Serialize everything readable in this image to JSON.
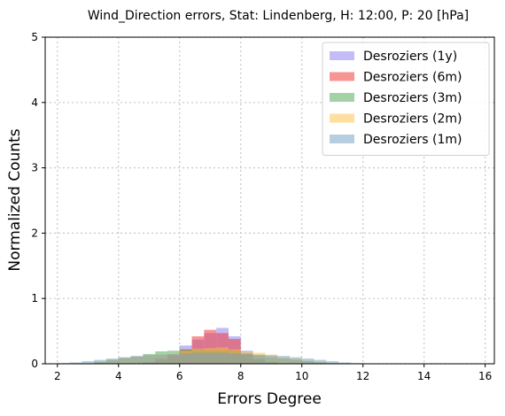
{
  "chart_data": {
    "type": "bar",
    "title": "Wind_Direction errors, Stat: Lindenberg, H: 12:00, P: 20 [hPa]",
    "xlabel": "Errors Degree",
    "ylabel": "Normalized Counts",
    "xlim": [
      1.6,
      16.3
    ],
    "ylim": [
      0,
      5
    ],
    "xticks": [
      2,
      4,
      6,
      8,
      10,
      12,
      14,
      16
    ],
    "yticks": [
      0,
      1,
      2,
      3,
      4,
      5
    ],
    "grid": true,
    "legend_position": "top-right",
    "bin_edges": [
      2.0,
      2.4,
      2.8,
      3.2,
      3.6,
      4.0,
      4.4,
      4.8,
      5.2,
      5.6,
      6.0,
      6.4,
      6.8,
      7.2,
      7.6,
      8.0,
      8.4,
      8.8,
      9.2,
      9.6,
      10.0,
      10.4,
      10.8,
      11.2,
      11.6,
      12.0,
      12.4,
      12.8,
      13.2,
      13.6,
      14.0,
      14.4,
      14.8,
      15.2,
      15.6,
      16.0
    ],
    "series": [
      {
        "name": "Desroziers (1y)",
        "color": "#9b8ff0",
        "opacity": 0.6,
        "values": [
          0,
          0,
          0,
          0,
          0,
          0,
          0,
          0.03,
          0.08,
          0.14,
          0.28,
          0.37,
          0.47,
          0.55,
          0.42,
          0.2,
          0.08,
          0.03,
          0,
          0,
          0,
          0,
          0,
          0,
          0,
          0,
          0,
          0,
          0,
          0,
          0,
          0,
          0,
          0,
          0
        ]
      },
      {
        "name": "Desroziers (6m)",
        "color": "#f03c3c",
        "opacity": 0.55,
        "values": [
          0,
          0,
          0,
          0,
          0,
          0,
          0,
          0.02,
          0.06,
          0.12,
          0.22,
          0.42,
          0.52,
          0.47,
          0.38,
          0.14,
          0.06,
          0.02,
          0,
          0,
          0,
          0,
          0,
          0,
          0,
          0,
          0,
          0,
          0,
          0,
          0,
          0,
          0,
          0,
          0
        ]
      },
      {
        "name": "Desroziers (3m)",
        "color": "#4ca64c",
        "opacity": 0.5,
        "values": [
          0,
          0,
          0,
          0.03,
          0.06,
          0.09,
          0.11,
          0.15,
          0.19,
          0.2,
          0.22,
          0.22,
          0.21,
          0.21,
          0.2,
          0.16,
          0.13,
          0.1,
          0.08,
          0.06,
          0.04,
          0.02,
          0.01,
          0,
          0,
          0,
          0,
          0,
          0,
          0,
          0,
          0,
          0,
          0,
          0
        ]
      },
      {
        "name": "Desroziers (2m)",
        "color": "#ffc040",
        "opacity": 0.5,
        "values": [
          0,
          0,
          0,
          0.03,
          0.06,
          0.09,
          0.11,
          0.12,
          0.14,
          0.16,
          0.2,
          0.23,
          0.24,
          0.25,
          0.22,
          0.19,
          0.17,
          0.14,
          0.1,
          0.08,
          0.05,
          0.03,
          0.01,
          0,
          0,
          0,
          0,
          0,
          0,
          0,
          0,
          0,
          0,
          0,
          0
        ]
      },
      {
        "name": "Desroziers (1m)",
        "color": "#6f9ec4",
        "opacity": 0.5,
        "values": [
          0.01,
          0.02,
          0.04,
          0.06,
          0.08,
          0.1,
          0.12,
          0.13,
          0.14,
          0.15,
          0.16,
          0.17,
          0.17,
          0.17,
          0.16,
          0.15,
          0.14,
          0.13,
          0.12,
          0.1,
          0.08,
          0.06,
          0.04,
          0.02,
          0.01,
          0,
          0,
          0,
          0,
          0,
          0,
          0,
          0,
          0,
          0
        ]
      }
    ]
  }
}
